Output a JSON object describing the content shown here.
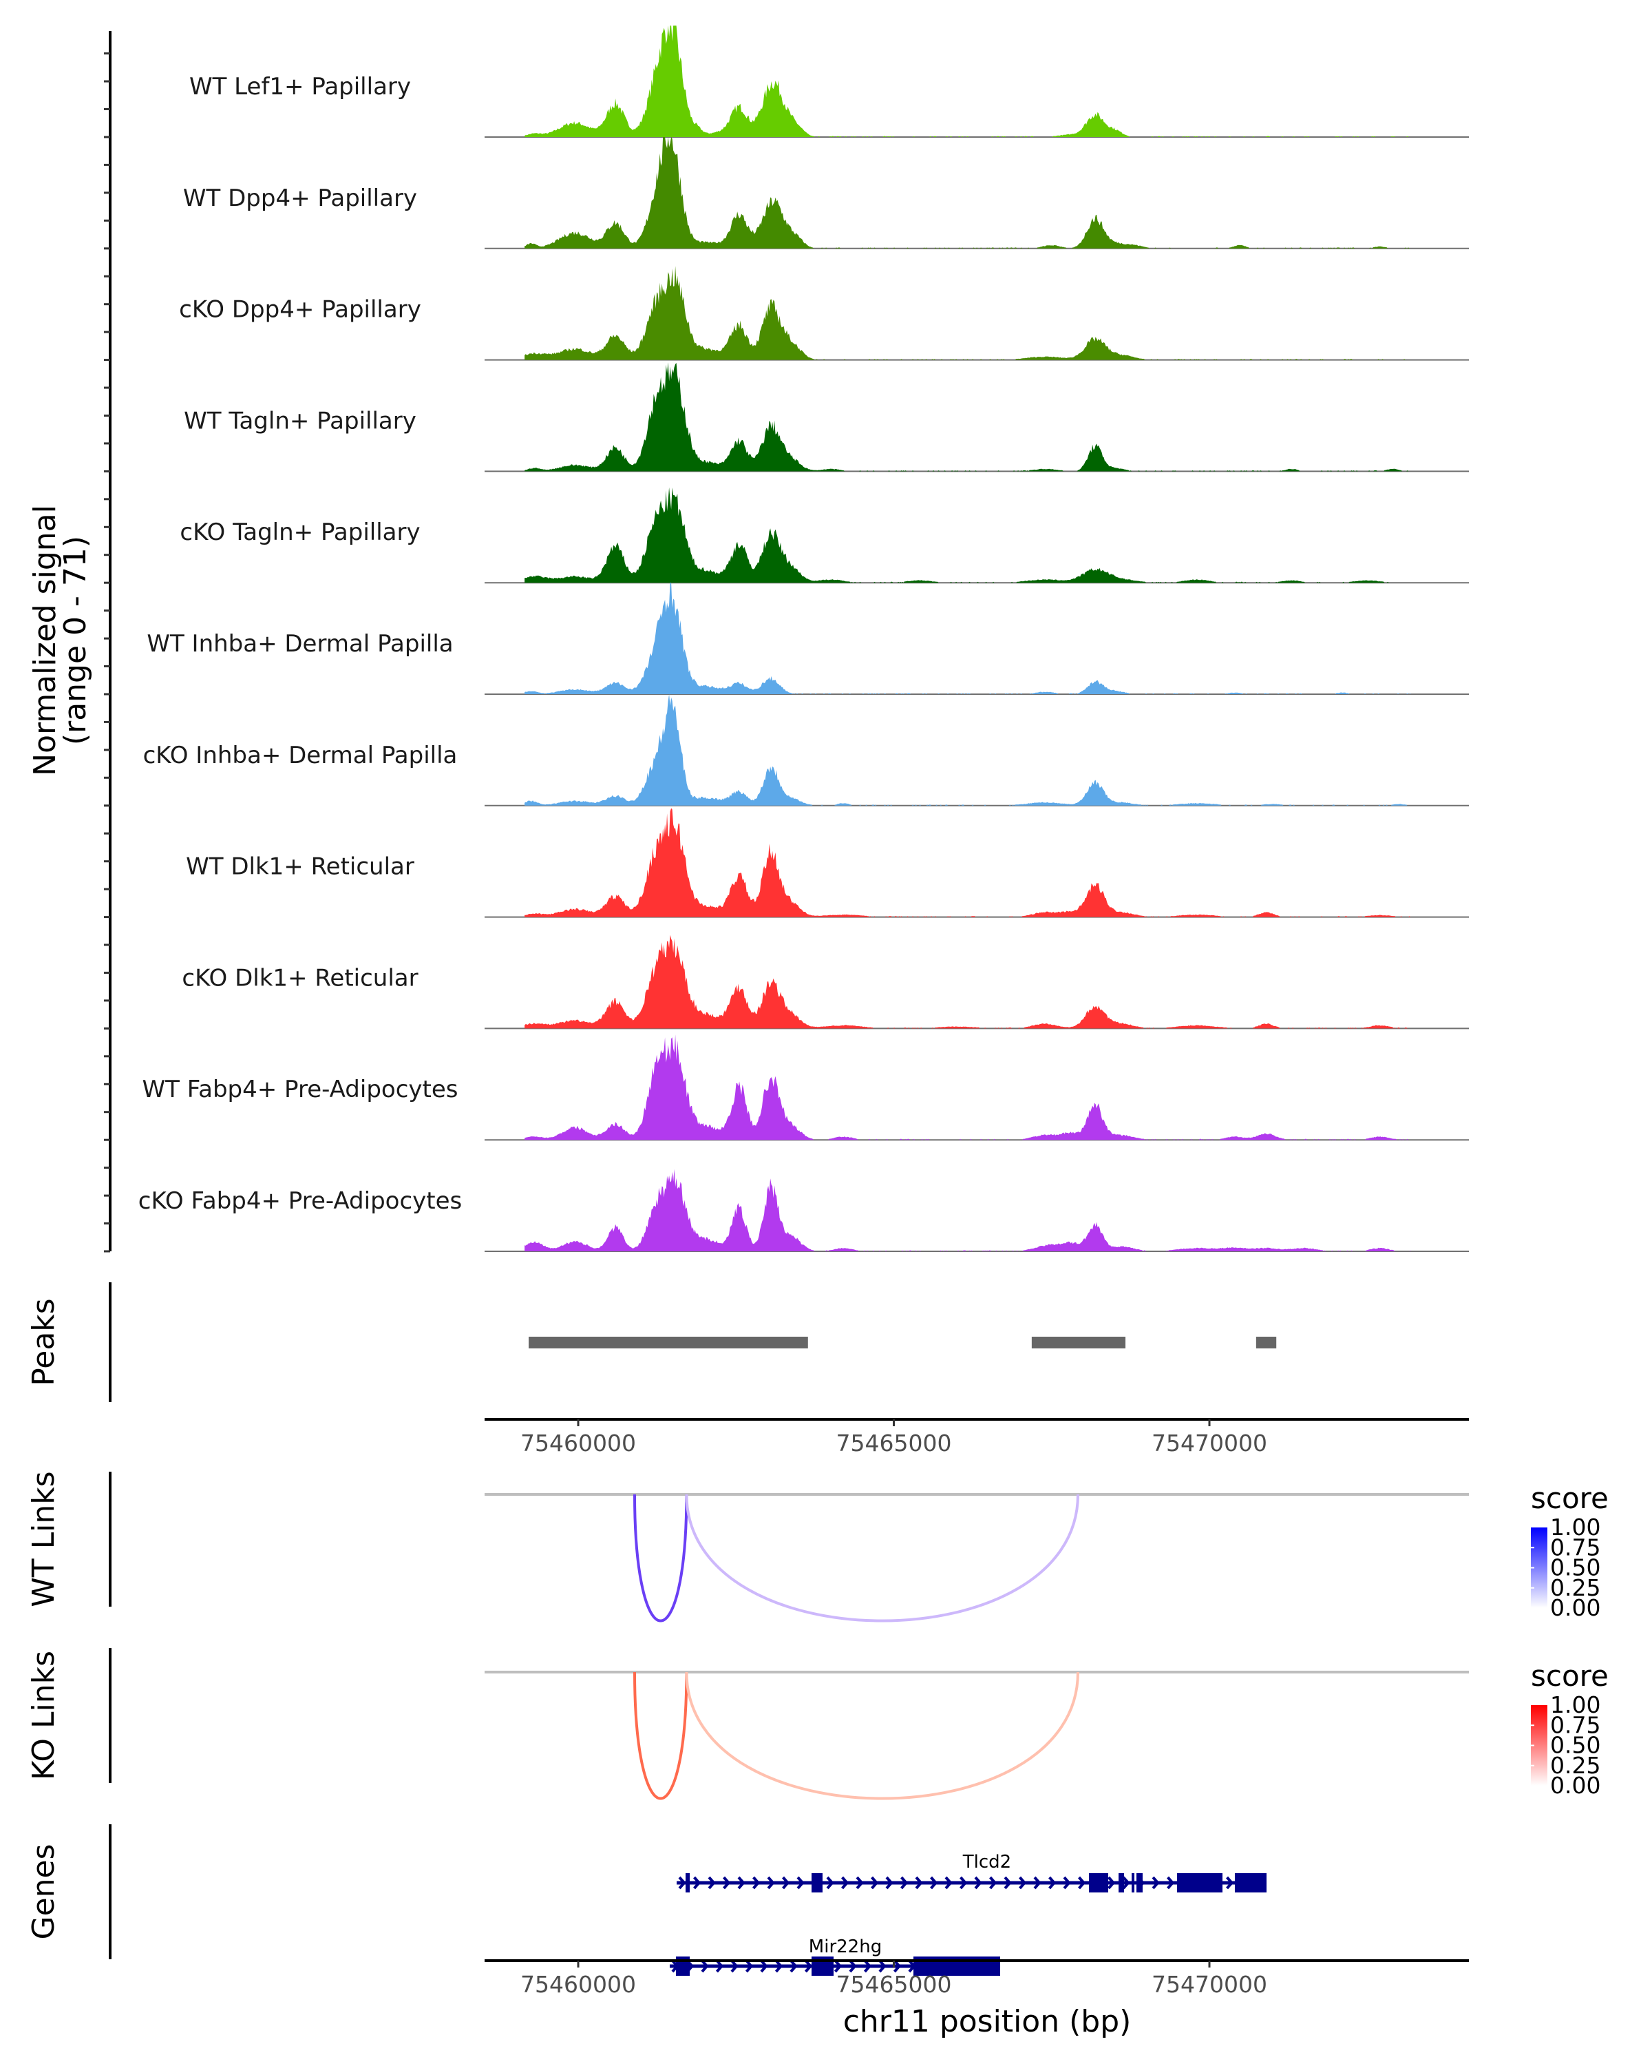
{
  "chart_data": {
    "type": "area",
    "title": "",
    "chromosome": "chr11",
    "xlabel": "chr11 position (bp)",
    "xlim": [
      75458500,
      75474100
    ],
    "x_ticks": [
      75460000,
      75465000,
      75470000
    ],
    "x_tick_labels": [
      "75460000",
      "75465000",
      "75470000"
    ],
    "coverage": {
      "ylabel_line1": "Normalized signal",
      "ylabel_line2": "(range 0 - 71)",
      "ylim": [
        0,
        71
      ],
      "tracks": [
        {
          "name": "WT Lef1+ Papillary",
          "color": "#66CC00",
          "peaks": [
            [
              75459300,
              2,
              120
            ],
            [
              75459945,
              9,
              250
            ],
            [
              75460590,
              21,
              140
            ],
            [
              75461300,
              40,
              180
            ],
            [
              75461520,
              49,
              150
            ],
            [
              75461890,
              4,
              80
            ],
            [
              75462250,
              3,
              200
            ],
            [
              75462550,
              18,
              130
            ],
            [
              75463090,
              35,
              170
            ],
            [
              75463450,
              6,
              120
            ],
            [
              75467800,
              1.5,
              200
            ],
            [
              75468190,
              14,
              140
            ],
            [
              75468500,
              4,
              120
            ]
          ]
        },
        {
          "name": "WT Dpp4+ Papillary",
          "color": "#448A00",
          "peaks": [
            [
              75459250,
              3,
              80
            ],
            [
              75459950,
              10,
              250
            ],
            [
              75460590,
              16,
              140
            ],
            [
              75461300,
              38,
              170
            ],
            [
              75461500,
              49,
              140
            ],
            [
              75462000,
              4,
              300
            ],
            [
              75462550,
              21,
              130
            ],
            [
              75463090,
              30,
              170
            ],
            [
              75463450,
              6,
              120
            ],
            [
              75467500,
              2,
              150
            ],
            [
              75468190,
              19,
              130
            ],
            [
              75468500,
              3,
              150
            ],
            [
              75468800,
              2,
              150
            ],
            [
              75470480,
              2,
              100
            ],
            [
              75472700,
              1.2,
              100
            ]
          ]
        },
        {
          "name": "cKO Dpp4+ Papillary",
          "color": "#4A8C00",
          "peaks": [
            [
              75459300,
              4,
              200
            ],
            [
              75459950,
              7,
              250
            ],
            [
              75460590,
              15,
              150
            ],
            [
              75461250,
              34,
              170
            ],
            [
              75461550,
              42,
              150
            ],
            [
              75462000,
              7,
              300
            ],
            [
              75462550,
              21,
              130
            ],
            [
              75463050,
              32,
              140
            ],
            [
              75463350,
              11,
              160
            ],
            [
              75467400,
              2,
              300
            ],
            [
              75468190,
              13,
              160
            ],
            [
              75468600,
              3,
              200
            ]
          ]
        },
        {
          "name": "WT Tagln+ Papillary",
          "color": "#006400",
          "peaks": [
            [
              75459300,
              2,
              100
            ],
            [
              75459950,
              4,
              250
            ],
            [
              75460590,
              15,
              140
            ],
            [
              75461250,
              44,
              160
            ],
            [
              75461550,
              52,
              150
            ],
            [
              75462000,
              6,
              250
            ],
            [
              75462550,
              19,
              130
            ],
            [
              75463050,
              28,
              140
            ],
            [
              75463350,
              8,
              160
            ],
            [
              75464000,
              1.5,
              150
            ],
            [
              75467400,
              1.5,
              200
            ],
            [
              75468190,
              16,
              110
            ],
            [
              75468500,
              2,
              150
            ],
            [
              75471300,
              1.5,
              100
            ],
            [
              75472900,
              1.5,
              100
            ]
          ]
        },
        {
          "name": "cKO Tagln+ Papillary",
          "color": "#006400",
          "peaks": [
            [
              75459300,
              4,
              200
            ],
            [
              75459950,
              4,
              250
            ],
            [
              75460590,
              23,
              140
            ],
            [
              75461250,
              38,
              170
            ],
            [
              75461550,
              42,
              150
            ],
            [
              75462000,
              8,
              250
            ],
            [
              75462550,
              24,
              130
            ],
            [
              75463050,
              30,
              140
            ],
            [
              75463350,
              10,
              160
            ],
            [
              75464000,
              2,
              200
            ],
            [
              75465400,
              1.5,
              200
            ],
            [
              75467400,
              2,
              300
            ],
            [
              75468190,
              8,
              200
            ],
            [
              75468600,
              2,
              250
            ],
            [
              75469800,
              2,
              200
            ],
            [
              75471300,
              1.5,
              150
            ],
            [
              75472500,
              1.5,
              200
            ]
          ]
        },
        {
          "name": "WT Inhba+ Dermal Papilla",
          "color": "#5DA9E9",
          "peaks": [
            [
              75459250,
              2,
              100
            ],
            [
              75459950,
              3,
              250
            ],
            [
              75460590,
              7,
              150
            ],
            [
              75461300,
              30,
              190
            ],
            [
              75461500,
              44,
              150
            ],
            [
              75462000,
              5,
              300
            ],
            [
              75462550,
              6,
              130
            ],
            [
              75463050,
              10,
              140
            ],
            [
              75467400,
              1.5,
              150
            ],
            [
              75468190,
              8,
              120
            ],
            [
              75468500,
              2,
              150
            ],
            [
              75470400,
              1,
              100
            ],
            [
              75472100,
              1,
              100
            ]
          ]
        },
        {
          "name": "cKO Inhba+ Dermal Papilla",
          "color": "#5DA9E9",
          "peaks": [
            [
              75459250,
              3,
              100
            ],
            [
              75459950,
              3,
              250
            ],
            [
              75460590,
              6,
              150
            ],
            [
              75461250,
              28,
              170
            ],
            [
              75461500,
              55,
              120
            ],
            [
              75462000,
              5,
              300
            ],
            [
              75462550,
              8,
              130
            ],
            [
              75463050,
              24,
              120
            ],
            [
              75463350,
              5,
              160
            ],
            [
              75464200,
              1.5,
              100
            ],
            [
              75467400,
              2,
              300
            ],
            [
              75468190,
              14,
              130
            ],
            [
              75468600,
              2,
              200
            ],
            [
              75469800,
              1.5,
              300
            ],
            [
              75471000,
              1,
              150
            ],
            [
              75473000,
              1,
              100
            ]
          ]
        },
        {
          "name": "WT Dlk1+ Reticular",
          "color": "#FF3333",
          "peaks": [
            [
              75459300,
              2,
              150
            ],
            [
              75459950,
              5,
              250
            ],
            [
              75460590,
              13,
              150
            ],
            [
              75461250,
              40,
              170
            ],
            [
              75461550,
              48,
              150
            ],
            [
              75462000,
              7,
              300
            ],
            [
              75462550,
              25,
              130
            ],
            [
              75463050,
              40,
              130
            ],
            [
              75463350,
              9,
              160
            ],
            [
              75464200,
              1.5,
              300
            ],
            [
              75467400,
              3,
              200
            ],
            [
              75467800,
              3,
              150
            ],
            [
              75468190,
              20,
              140
            ],
            [
              75468600,
              3,
              200
            ],
            [
              75469800,
              1.5,
              300
            ],
            [
              75470900,
              3,
              120
            ],
            [
              75472700,
              1.2,
              200
            ]
          ]
        },
        {
          "name": "cKO Dlk1+ Reticular",
          "color": "#FF3333",
          "peaks": [
            [
              75459300,
              3,
              200
            ],
            [
              75459950,
              5,
              250
            ],
            [
              75460590,
              17,
              150
            ],
            [
              75461250,
              36,
              170
            ],
            [
              75461550,
              40,
              160
            ],
            [
              75462000,
              9,
              300
            ],
            [
              75462550,
              25,
              130
            ],
            [
              75463050,
              28,
              140
            ],
            [
              75463350,
              9,
              160
            ],
            [
              75464200,
              2,
              300
            ],
            [
              75466000,
              1.2,
              300
            ],
            [
              75467400,
              3,
              200
            ],
            [
              75468190,
              14,
              150
            ],
            [
              75468600,
              3,
              200
            ],
            [
              75469800,
              2,
              300
            ],
            [
              75470900,
              3,
              120
            ],
            [
              75472700,
              2,
              150
            ]
          ]
        },
        {
          "name": "WT Fabp4+ Pre-Adipocytes",
          "color": "#B23AEE",
          "peaks": [
            [
              75459300,
              2,
              150
            ],
            [
              75459950,
              8,
              200
            ],
            [
              75460590,
              10,
              150
            ],
            [
              75461250,
              45,
              150
            ],
            [
              75461550,
              50,
              150
            ],
            [
              75462000,
              9,
              250
            ],
            [
              75462550,
              33,
              120
            ],
            [
              75463050,
              38,
              130
            ],
            [
              75463350,
              9,
              160
            ],
            [
              75464200,
              2,
              150
            ],
            [
              75467400,
              3,
              200
            ],
            [
              75467800,
              4,
              150
            ],
            [
              75468190,
              22,
              120
            ],
            [
              75468600,
              3,
              200
            ],
            [
              75470400,
              2,
              150
            ],
            [
              75470900,
              4,
              150
            ],
            [
              75472700,
              2,
              150
            ]
          ]
        },
        {
          "name": "cKO Fabp4+ Pre-Adipocytes",
          "color": "#B23AEE",
          "peaks": [
            [
              75459300,
              6,
              150
            ],
            [
              75459950,
              6,
              200
            ],
            [
              75460590,
              15,
              120
            ],
            [
              75461250,
              28,
              150
            ],
            [
              75461550,
              40,
              150
            ],
            [
              75462000,
              8,
              250
            ],
            [
              75462550,
              27,
              110
            ],
            [
              75463050,
              39,
              110
            ],
            [
              75463350,
              10,
              160
            ],
            [
              75464200,
              2,
              150
            ],
            [
              75467400,
              3,
              200
            ],
            [
              75467800,
              5,
              200
            ],
            [
              75468190,
              16,
              110
            ],
            [
              75468600,
              3,
              200
            ],
            [
              75469800,
              2,
              300
            ],
            [
              75470400,
              2,
              200
            ],
            [
              75470900,
              2,
              200
            ],
            [
              75471500,
              2,
              200
            ],
            [
              75472700,
              2,
              150
            ]
          ]
        }
      ]
    },
    "peaks_track": {
      "label": "Peaks",
      "color": "#666666",
      "regions": [
        [
          75459215,
          75463640
        ],
        [
          75467185,
          75468670
        ],
        [
          75470740,
          75471060
        ]
      ]
    },
    "links": [
      {
        "label": "WT Links",
        "scale": "blue",
        "legend": {
          "title": "score",
          "ticks": [
            "1.00",
            "0.75",
            "0.50",
            "0.25",
            "0.00"
          ],
          "low": "#FFFFFF",
          "high": "#0000FF"
        },
        "arcs": [
          {
            "start": 75460894,
            "end": 75461716,
            "score": 0.75
          },
          {
            "start": 75461716,
            "end": 75467917,
            "score": 0.3
          }
        ]
      },
      {
        "label": "KO Links",
        "scale": "red",
        "legend": {
          "title": "score",
          "ticks": [
            "1.00",
            "0.75",
            "0.50",
            "0.25",
            "0.00"
          ],
          "low": "#FFFFFF",
          "high": "#FF0000"
        },
        "arcs": [
          {
            "start": 75460894,
            "end": 75461716,
            "score": 0.7
          },
          {
            "start": 75461716,
            "end": 75467917,
            "score": 0.3
          }
        ]
      }
    ],
    "genes_track": {
      "label": "Genes",
      "color": "#00008B",
      "genes": [
        {
          "name": "Tlcd2",
          "strand": "+",
          "start": 75461560,
          "end": 75470905,
          "exons": [
            [
              75461701,
              75461767
            ],
            [
              75463697,
              75463871
            ],
            [
              75468092,
              75468397
            ],
            [
              75468561,
              75468648
            ],
            [
              75468768,
              75468811
            ],
            [
              75468844,
              75468942
            ],
            [
              75469487,
              75470207
            ],
            [
              75470403,
              75470905
            ]
          ]
        },
        {
          "name": "Mir22hg",
          "strand": "+",
          "start": 75461450,
          "end": 75466685,
          "exons": [
            [
              75461549,
              75461767
            ],
            [
              75463697,
              75464046
            ],
            [
              75465311,
              75466685
            ]
          ]
        }
      ]
    }
  }
}
